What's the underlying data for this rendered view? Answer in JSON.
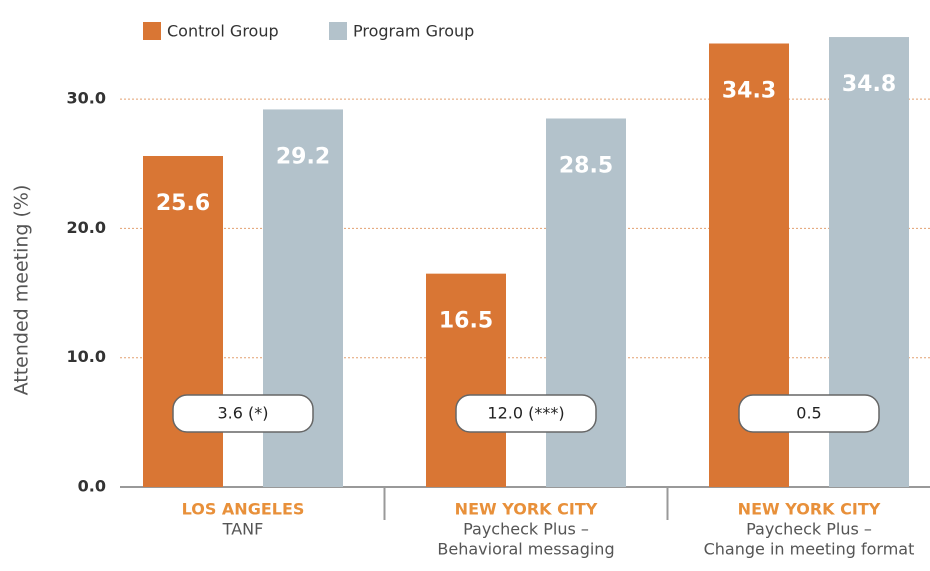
{
  "chart_data": {
    "type": "bar",
    "y_label": "Attended meeting (%)",
    "categories": [
      "LOS ANGELES",
      "NEW YORK CITY",
      "NEW YORK CITY"
    ],
    "category_details": [
      [
        "TANF"
      ],
      [
        "Paycheck Plus –",
        "Behavioral messaging"
      ],
      [
        "Paycheck Plus –",
        "Change in meeting format"
      ]
    ],
    "series": [
      {
        "name": "Control Group",
        "color": "#d97634",
        "values": [
          25.6,
          16.5,
          34.3
        ]
      },
      {
        "name": "Program Group",
        "color": "#b3c2cb",
        "values": [
          29.2,
          28.5,
          34.8
        ]
      }
    ],
    "annotations": [
      "3.6 (*)",
      "12.0 (***)",
      "0.5"
    ],
    "ylim": [
      0,
      36
    ],
    "yticks": [
      {
        "value": 0,
        "label": "0.0"
      },
      {
        "value": 10,
        "label": "10.0"
      },
      {
        "value": 20,
        "label": "20.0"
      },
      {
        "value": 30,
        "label": "30.0"
      }
    ],
    "grid": true
  }
}
